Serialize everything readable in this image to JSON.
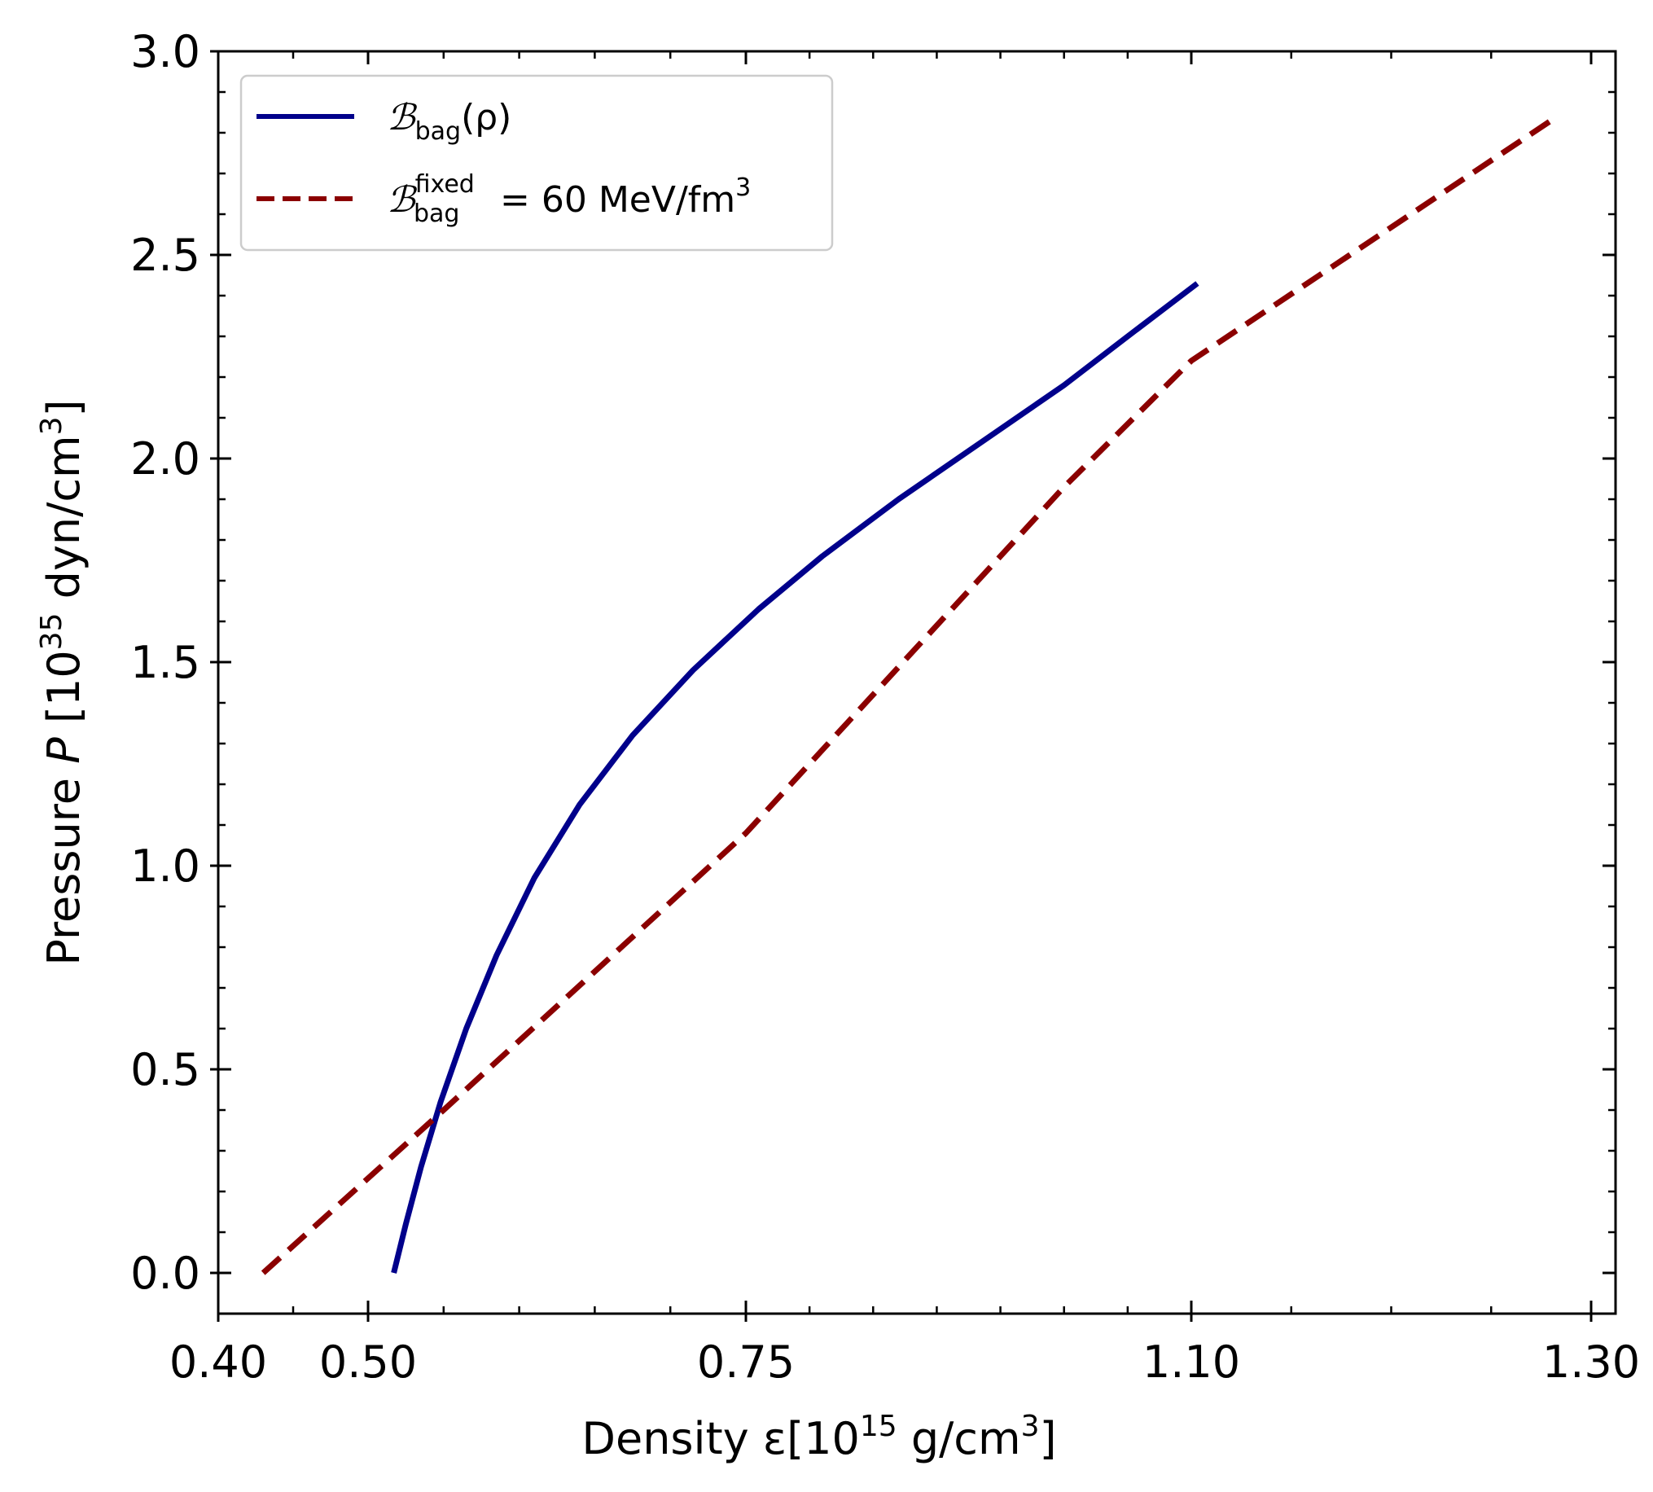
{
  "chart_data": {
    "type": "line",
    "title": "",
    "xlabel": {
      "prefix": "Density ",
      "symbol": "ε",
      "bracket_open": "[",
      "base": "10",
      "exponent": "15",
      "unit": " g/cm",
      "unit_exponent": "3",
      "bracket_close": "]"
    },
    "ylabel": {
      "prefix": "Pressure ",
      "symbol": "P",
      "bracket_open": " [",
      "base": "10",
      "exponent": "35",
      "unit": " dyn/cm",
      "unit_exponent": "3",
      "bracket_close": "]"
    },
    "x_ticks": [
      {
        "value": 0.4,
        "label": "0.40"
      },
      {
        "value": 0.5,
        "label": "0.50"
      },
      {
        "value": 0.75,
        "label": "0.75"
      },
      {
        "value": 1.1,
        "label": "1.10"
      },
      {
        "value": 1.3,
        "label": "1.30"
      }
    ],
    "y_ticks": [
      {
        "value": 0.0,
        "label": "0.0"
      },
      {
        "value": 0.5,
        "label": "0.5"
      },
      {
        "value": 1.0,
        "label": "1.0"
      },
      {
        "value": 1.5,
        "label": "1.5"
      },
      {
        "value": 2.0,
        "label": "2.0"
      },
      {
        "value": 2.5,
        "label": "2.5"
      },
      {
        "value": 3.0,
        "label": "3.0"
      }
    ],
    "x_ticks_note": "non-linear x axis: tick values placed at nonuniform spacing",
    "ylim": [
      -0.1,
      3.0
    ],
    "grid": false,
    "legend_position": "top-left",
    "series": [
      {
        "name": "B_bag(rho)",
        "legend": {
          "main": "ℬ",
          "sub": "bag",
          "rest": "(ρ)"
        },
        "color": "#00008b",
        "style": "solid",
        "points": [
          [
            0.517,
            0.0
          ],
          [
            0.525,
            0.12
          ],
          [
            0.535,
            0.26
          ],
          [
            0.548,
            0.42
          ],
          [
            0.565,
            0.6
          ],
          [
            0.585,
            0.78
          ],
          [
            0.61,
            0.97
          ],
          [
            0.64,
            1.15
          ],
          [
            0.675,
            1.32
          ],
          [
            0.715,
            1.48
          ],
          [
            0.76,
            1.63
          ],
          [
            0.81,
            1.76
          ],
          [
            0.87,
            1.9
          ],
          [
            0.935,
            2.04
          ],
          [
            1.0,
            2.18
          ],
          [
            1.05,
            2.3
          ],
          [
            1.103,
            2.43
          ]
        ]
      },
      {
        "name": "B_bag_fixed = 60 MeV/fm3",
        "legend": {
          "main": "ℬ",
          "sub": "bag",
          "sup": "fixed",
          "rest": " = 60 MeV/fm",
          "rest_sup": "3"
        },
        "color": "#8b0000",
        "style": "dashed",
        "points": [
          [
            0.43,
            0.0
          ],
          [
            0.55,
            0.4
          ],
          [
            0.75,
            1.08
          ],
          [
            1.0,
            1.93
          ],
          [
            1.1,
            2.24
          ],
          [
            1.28,
            2.83
          ]
        ]
      }
    ]
  }
}
